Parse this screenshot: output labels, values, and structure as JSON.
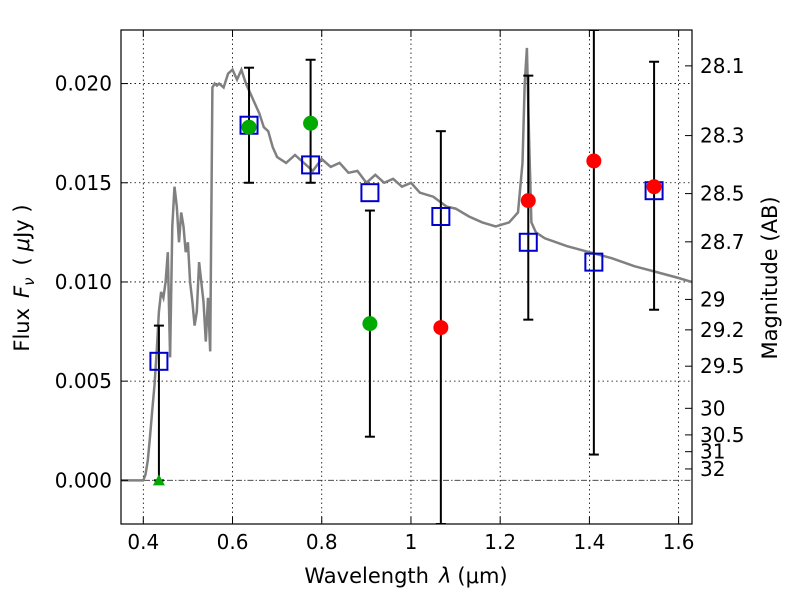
{
  "chart_data": {
    "type": "scatter",
    "x_axis": {
      "label_prefix": "Wavelength",
      "label_symbol": "λ",
      "label_unit": "(μm)",
      "range": [
        0.35,
        1.63
      ],
      "ticks": [
        0.4,
        0.6,
        0.8,
        1.0,
        1.2,
        1.4,
        1.6
      ],
      "tick_labels": [
        "0.4",
        "0.6",
        "0.8",
        "1",
        "1.2",
        "1.4",
        "1.6"
      ]
    },
    "y_axis": {
      "label_prefix": "Flux",
      "label_symbol": "F",
      "label_subscript": "ν",
      "label_unit_open": "(",
      "label_unit_mu": "μ",
      "label_unit_rest": "Jy )",
      "range": [
        -0.0022,
        0.0227
      ],
      "ticks": [
        0.0,
        0.005,
        0.01,
        0.015,
        0.02
      ],
      "tick_labels": [
        "0.000",
        "0.005",
        "0.010",
        "0.015",
        "0.020"
      ]
    },
    "y2_axis": {
      "label": "Magnitude (AB)",
      "zero_point": 23.9,
      "ticks": [
        28.1,
        28.3,
        28.5,
        28.7,
        29,
        29.2,
        29.5,
        30,
        30.5,
        31,
        32
      ],
      "tick_labels": [
        "28.1",
        "28.3",
        "28.5",
        "28.7",
        "29",
        "29.2",
        "29.5",
        "30",
        "30.5",
        "31",
        "32"
      ]
    },
    "grid": true,
    "zero_line": true,
    "model_spectrum": {
      "color": "#808080",
      "x": [
        0.35,
        0.4,
        0.405,
        0.41,
        0.415,
        0.42,
        0.425,
        0.43,
        0.435,
        0.44,
        0.445,
        0.45,
        0.455,
        0.46,
        0.465,
        0.47,
        0.475,
        0.48,
        0.485,
        0.49,
        0.495,
        0.5,
        0.505,
        0.51,
        0.515,
        0.52,
        0.525,
        0.53,
        0.535,
        0.54,
        0.545,
        0.55,
        0.555,
        0.56,
        0.565,
        0.57,
        0.58,
        0.59,
        0.6,
        0.61,
        0.62,
        0.63,
        0.64,
        0.65,
        0.66,
        0.67,
        0.68,
        0.69,
        0.7,
        0.72,
        0.74,
        0.76,
        0.78,
        0.8,
        0.82,
        0.84,
        0.86,
        0.88,
        0.9,
        0.92,
        0.94,
        0.96,
        0.98,
        1.0,
        1.02,
        1.05,
        1.08,
        1.1,
        1.13,
        1.16,
        1.19,
        1.22,
        1.24,
        1.25,
        1.255,
        1.26,
        1.265,
        1.27,
        1.28,
        1.3,
        1.35,
        1.4,
        1.45,
        1.5,
        1.55,
        1.6,
        1.63
      ],
      "y": [
        0.0,
        0.0,
        0.0003,
        0.001,
        0.0022,
        0.0035,
        0.0048,
        0.0065,
        0.0085,
        0.0095,
        0.0092,
        0.01,
        0.0115,
        0.0062,
        0.0128,
        0.0148,
        0.0138,
        0.012,
        0.0135,
        0.0128,
        0.0115,
        0.012,
        0.01,
        0.009,
        0.0078,
        0.0085,
        0.011,
        0.01,
        0.009,
        0.007,
        0.0092,
        0.0065,
        0.0198,
        0.02,
        0.0199,
        0.02,
        0.0198,
        0.0205,
        0.0207,
        0.0202,
        0.0207,
        0.02,
        0.0195,
        0.019,
        0.0185,
        0.0178,
        0.0176,
        0.0168,
        0.0163,
        0.016,
        0.0164,
        0.016,
        0.0156,
        0.0162,
        0.0158,
        0.016,
        0.0155,
        0.0156,
        0.015,
        0.0154,
        0.015,
        0.0152,
        0.0148,
        0.015,
        0.0145,
        0.0143,
        0.0138,
        0.0137,
        0.0133,
        0.013,
        0.0128,
        0.013,
        0.0135,
        0.016,
        0.02,
        0.0218,
        0.017,
        0.013,
        0.0125,
        0.0122,
        0.0118,
        0.0115,
        0.0112,
        0.0108,
        0.0105,
        0.0102,
        0.01
      ]
    },
    "model_photometry": {
      "marker": "open-square",
      "color": "#0000cc",
      "x": [
        0.435,
        0.637,
        0.775,
        0.908,
        1.067,
        1.263,
        1.41,
        1.545
      ],
      "y": [
        0.006,
        0.0179,
        0.0159,
        0.0145,
        0.0133,
        0.012,
        0.011,
        0.0146
      ]
    },
    "error_bars": {
      "color": "#000000",
      "x": [
        0.435,
        0.637,
        0.775,
        0.908,
        1.067,
        1.263,
        1.41,
        1.545
      ],
      "y_low": [
        0.0,
        0.015,
        0.015,
        0.0022,
        -0.0022,
        0.0081,
        0.0013,
        0.0086
      ],
      "y_high": [
        0.0078,
        0.0208,
        0.0212,
        0.0136,
        0.0176,
        0.0204,
        0.0227,
        0.0211
      ]
    },
    "optical_detections": {
      "marker": "filled-circle",
      "color": "#00aa00",
      "x": [
        0.637,
        0.775,
        0.908
      ],
      "y": [
        0.0178,
        0.018,
        0.0079
      ]
    },
    "upper_limit": {
      "marker": "filled-triangle",
      "color": "#00aa00",
      "x": [
        0.435
      ],
      "y": [
        0.0
      ]
    },
    "nir_detections": {
      "marker": "filled-circle",
      "color": "#ff0000",
      "x": [
        1.067,
        1.263,
        1.41,
        1.545
      ],
      "y": [
        0.0077,
        0.0141,
        0.0161,
        0.0148
      ]
    }
  }
}
